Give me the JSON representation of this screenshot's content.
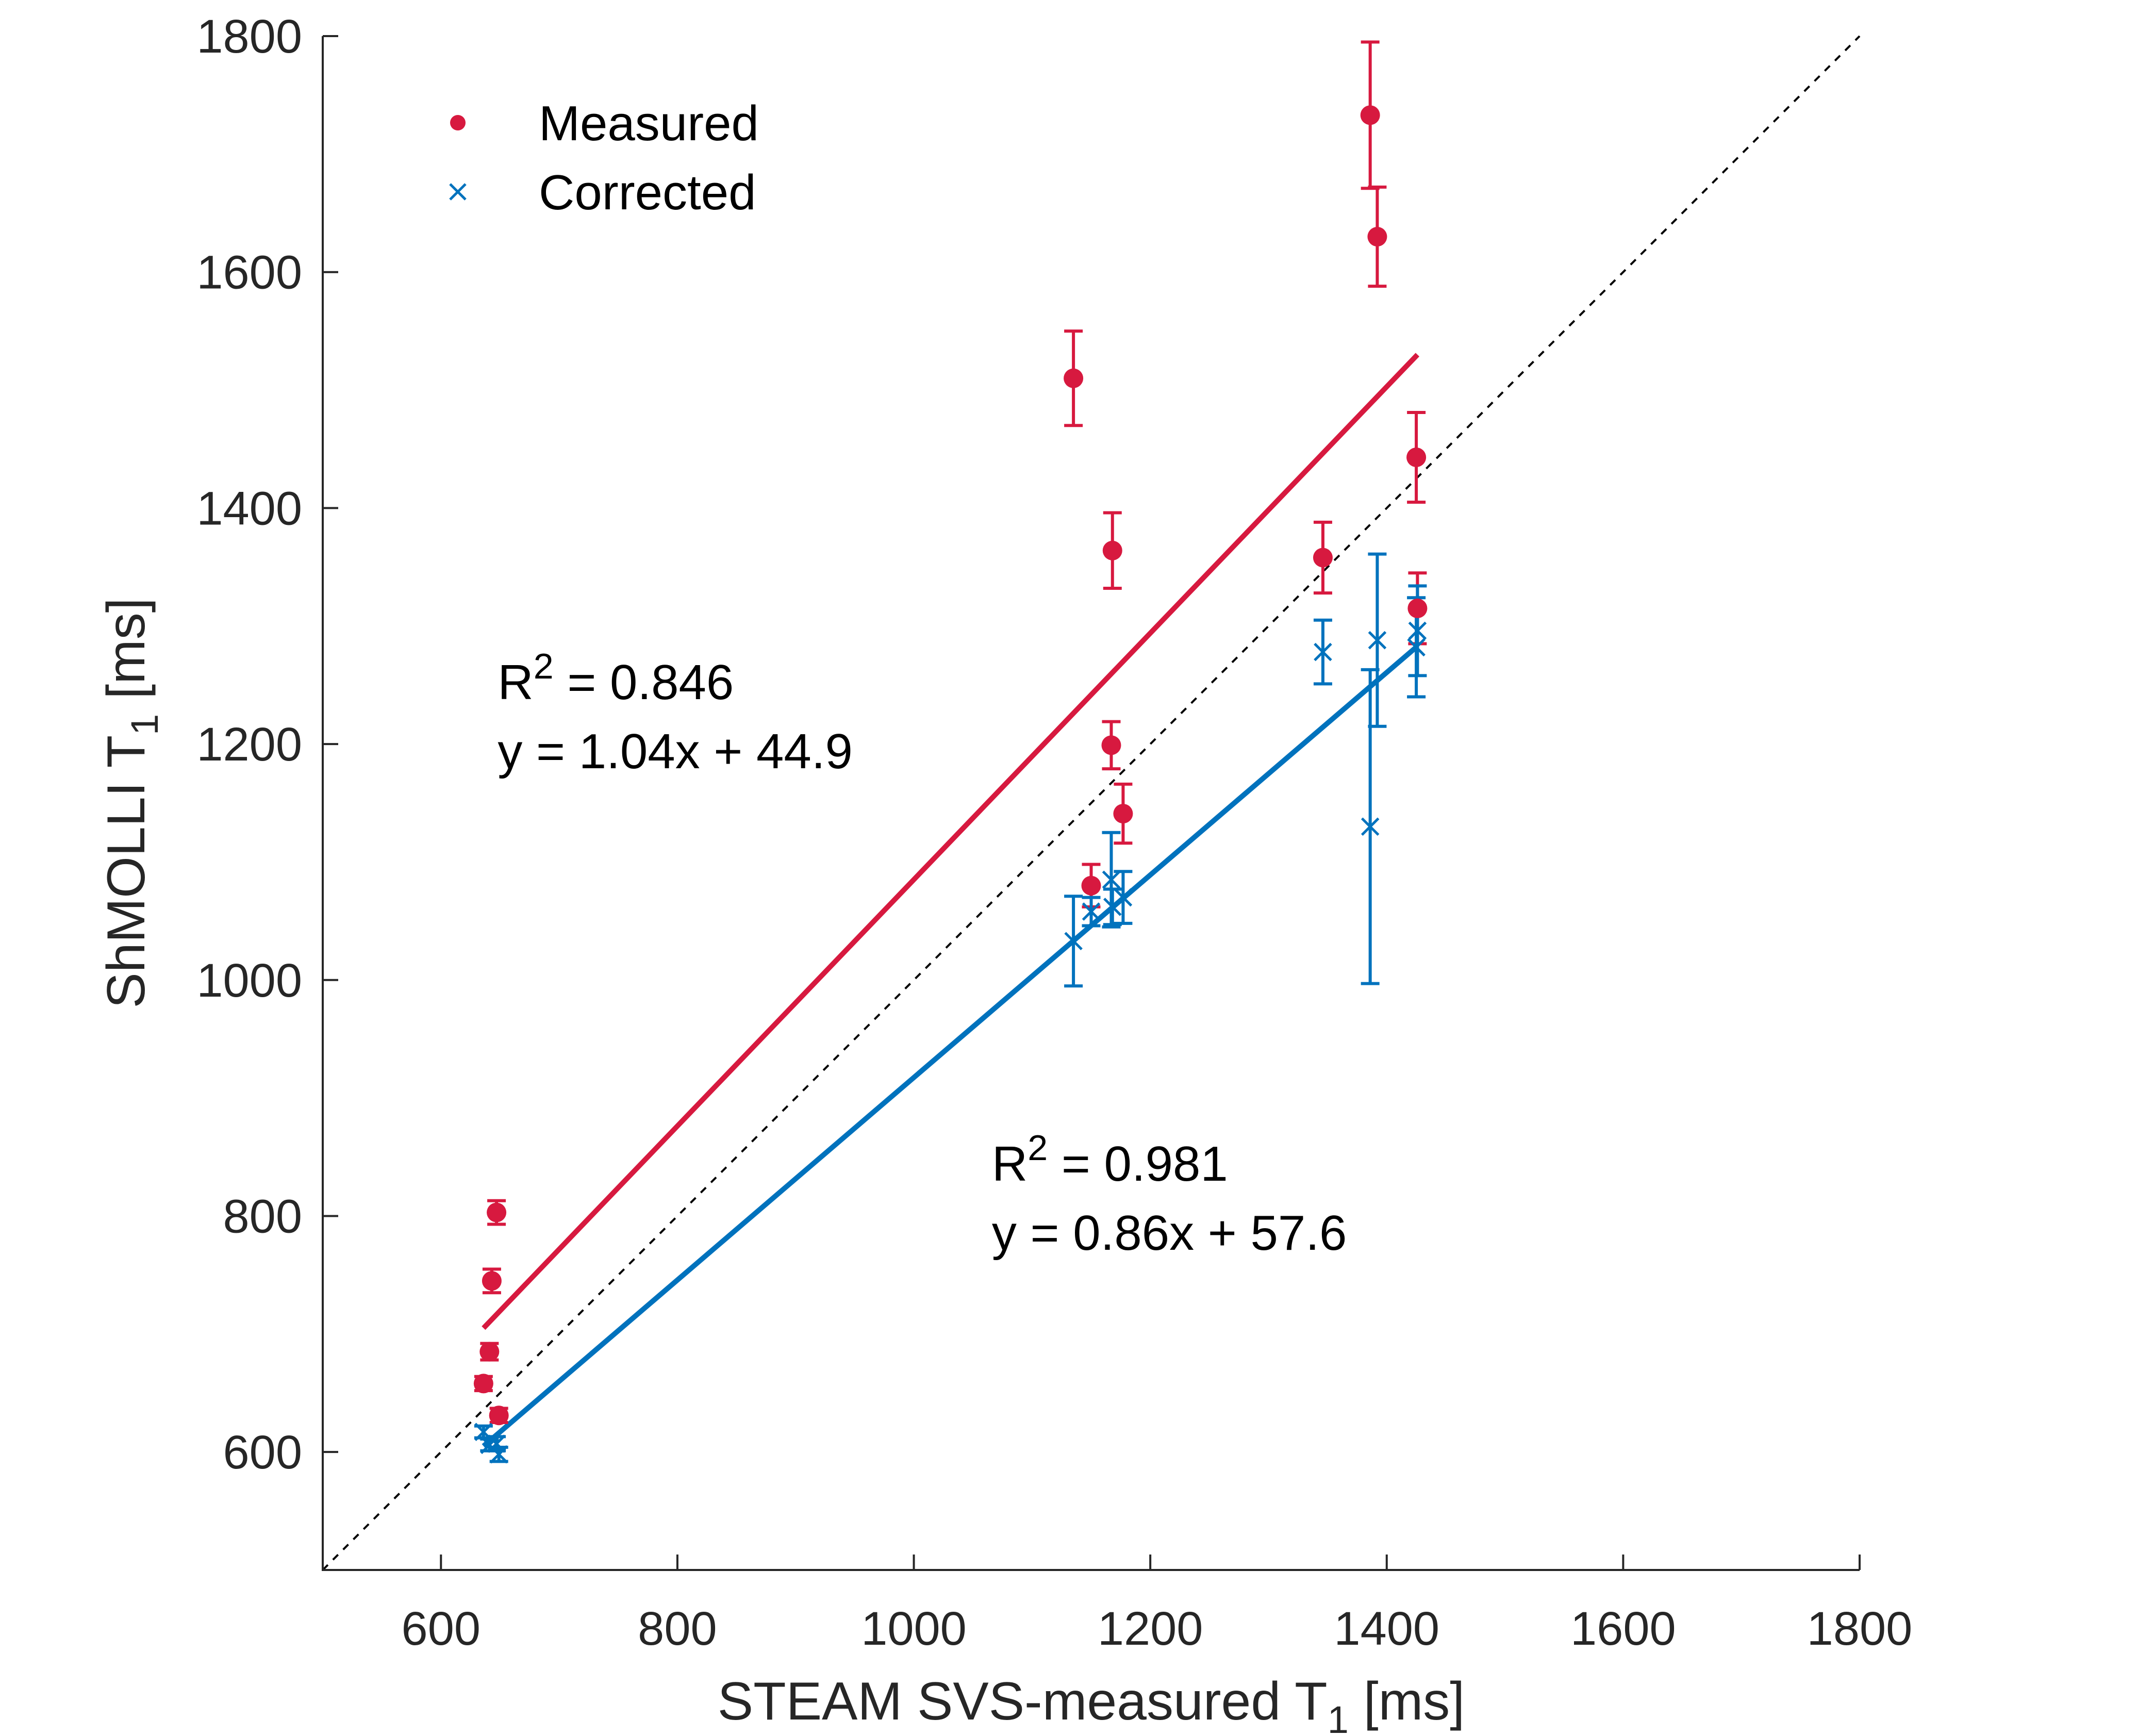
{
  "chart_data": {
    "type": "scatter",
    "title": "",
    "xlabel": "STEAM SVS-measured T",
    "xlabel_sub": "1",
    "xlabel_unit": " [ms]",
    "ylabel": "ShMOLLI T",
    "ylabel_sub": "1",
    "ylabel_unit": " [ms]",
    "xlim": [
      500,
      1800
    ],
    "ylim": [
      500,
      1800
    ],
    "xticks": [
      600,
      800,
      1000,
      1200,
      1400,
      1600,
      1800
    ],
    "yticks": [
      600,
      800,
      1000,
      1200,
      1400,
      1600,
      1800
    ],
    "legend_position": "top-left",
    "identity_line": true,
    "series": [
      {
        "name": "Measured",
        "color": "#d7193f",
        "marker": "circle",
        "points": [
          {
            "x": 636,
            "y": 658,
            "err": 6
          },
          {
            "x": 641,
            "y": 685,
            "err": 7
          },
          {
            "x": 643,
            "y": 745,
            "err": 10
          },
          {
            "x": 647,
            "y": 803,
            "err": 10
          },
          {
            "x": 649,
            "y": 631,
            "err": 6
          },
          {
            "x": 1135,
            "y": 1510,
            "err": 40
          },
          {
            "x": 1150,
            "y": 1080,
            "err": 18
          },
          {
            "x": 1167,
            "y": 1199,
            "err": 20
          },
          {
            "x": 1168,
            "y": 1364,
            "err": 32
          },
          {
            "x": 1177,
            "y": 1141,
            "err": 25
          },
          {
            "x": 1346,
            "y": 1358,
            "err": 30
          },
          {
            "x": 1386,
            "y": 1733,
            "err": 62
          },
          {
            "x": 1392,
            "y": 1630,
            "err": 42
          },
          {
            "x": 1425,
            "y": 1443,
            "err": 38
          },
          {
            "x": 1426,
            "y": 1315,
            "err": 30
          }
        ],
        "fit": {
          "x": [
            636,
            1426
          ],
          "y": [
            705,
            1530
          ]
        }
      },
      {
        "name": "Corrected",
        "color": "#0072bd",
        "marker": "cross",
        "points": [
          {
            "x": 636,
            "y": 617,
            "err": 5
          },
          {
            "x": 641,
            "y": 606,
            "err": 5
          },
          {
            "x": 647,
            "y": 607,
            "err": 6
          },
          {
            "x": 649,
            "y": 598,
            "err": 6
          },
          {
            "x": 1135,
            "y": 1033,
            "err": 38
          },
          {
            "x": 1150,
            "y": 1058,
            "err": 12
          },
          {
            "x": 1167,
            "y": 1085,
            "err": 40
          },
          {
            "x": 1168,
            "y": 1062,
            "err": 15
          },
          {
            "x": 1177,
            "y": 1070,
            "err": 22
          },
          {
            "x": 1346,
            "y": 1278,
            "err": 27
          },
          {
            "x": 1386,
            "y": 1130,
            "err": 133
          },
          {
            "x": 1392,
            "y": 1288,
            "err": 73
          },
          {
            "x": 1425,
            "y": 1282,
            "err": 42
          },
          {
            "x": 1426,
            "y": 1296,
            "err": 38
          }
        ],
        "fit": {
          "x": [
            636,
            1426
          ],
          "y": [
            605,
            1283
          ]
        }
      }
    ],
    "annotations": [
      {
        "id": "measured",
        "r2_label": "R",
        "r2_sup": "2",
        "r2_value": " = 0.846",
        "equation": "y = 1.04x + 44.9",
        "x": 648,
        "y": 1238
      },
      {
        "id": "corrected",
        "r2_label": "R",
        "r2_sup": "2",
        "r2_value": " = 0.981",
        "equation": "y = 0.86x +  57.6",
        "x": 1066,
        "y": 830
      }
    ]
  }
}
